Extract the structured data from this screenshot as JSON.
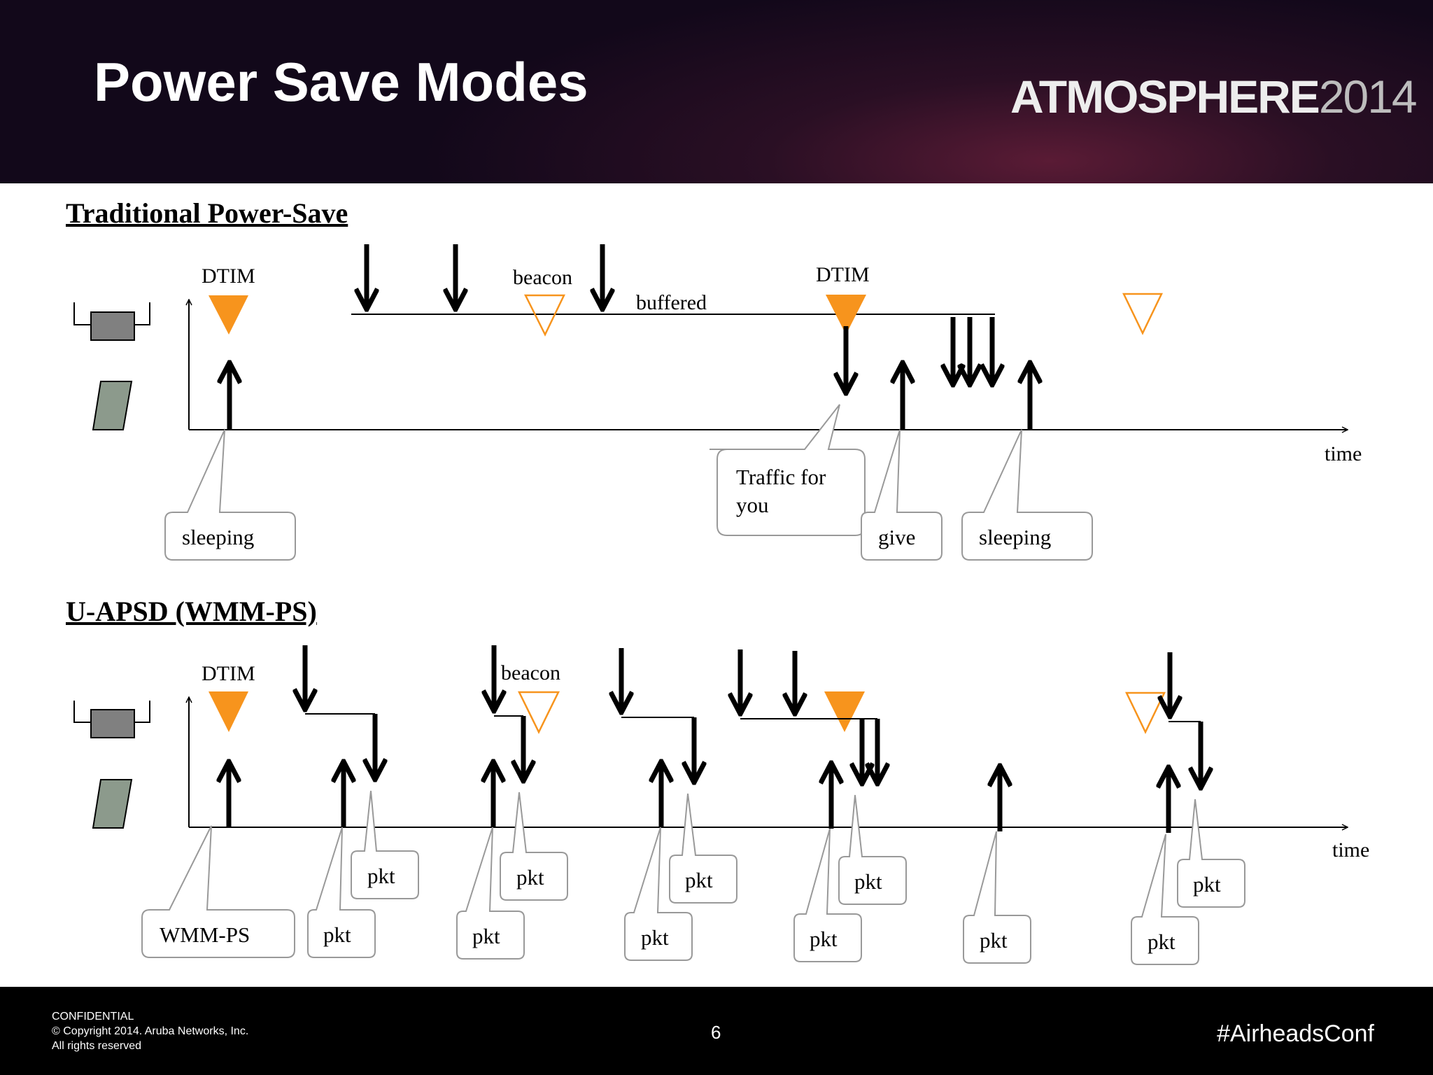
{
  "slide": {
    "title": "Power Save Modes",
    "brand_name": "ATMOSPHERE",
    "brand_year": "2014"
  },
  "section1": {
    "heading": "Traditional Power-Save",
    "labels": {
      "dtim_1": "DTIM",
      "beacon": "beacon",
      "buffered": "buffered",
      "dtim_2": "DTIM",
      "time": "time"
    },
    "callouts": {
      "sleeping_1": "sleeping",
      "traffic_line1": "Traffic for",
      "traffic_line2": "you",
      "give": "give",
      "sleeping_2": "sleeping"
    }
  },
  "section2": {
    "heading": "U-APSD (WMM-PS)",
    "labels": {
      "dtim": "DTIM",
      "beacon": "beacon",
      "time": "time"
    },
    "callouts": {
      "wmm_ps": "WMM-PS",
      "pkt": "pkt"
    }
  },
  "colors": {
    "dtim_orange": "#F7941D",
    "header_dark": "#1a0c1e",
    "ap_gray": "#808080",
    "client_green": "#8c9a8c"
  },
  "footer": {
    "confidential": "CONFIDENTIAL",
    "copyright": "© Copyright 2014. Aruba Networks, Inc.",
    "rights": "All rights reserved",
    "page_number": "6",
    "hashtag": "#AirheadsConf"
  }
}
